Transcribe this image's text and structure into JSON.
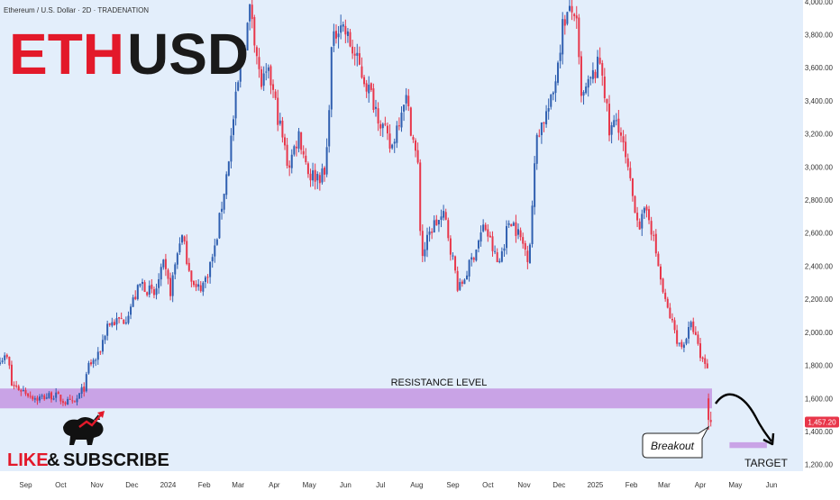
{
  "header": {
    "symbol_line": "Ethereum / U.S. Dollar · 2D · TRADENATION",
    "title_part1": "ETH",
    "title_part2": "USD"
  },
  "colors": {
    "background": "#e3eefb",
    "axis_background": "#ffffff",
    "up": "#2f5fb0",
    "down": "#e8364a",
    "zone": "#c9a3e6",
    "title_red": "#e3192a",
    "title_dark": "#1a1a1a",
    "price_label_bg": "#e8364a"
  },
  "annotations": {
    "resistance_label": "RESISTANCE LEVEL",
    "breakout_label": "Breakout",
    "target_label": "TARGET",
    "like": "LIKE",
    "amp": "&",
    "subscribe": "SUBSCRIBE"
  },
  "logo_icon": "bull-logo-icon",
  "chart_data": {
    "type": "candlestick",
    "title": "ETHUSD",
    "y_axis_ticks": [
      1200,
      1400,
      1600,
      1800,
      2000,
      2200,
      2400,
      2600,
      2800,
      3000,
      3200,
      3400,
      3600,
      3800,
      4000
    ],
    "y_axis_labels": [
      "1,200.00",
      "1,400.00",
      "1,600.00",
      "1,800.00",
      "2,000.00",
      "2,200.00",
      "2,400.00",
      "2,600.00",
      "2,800.00",
      "3,000.00",
      "3,200.00",
      "3,400.00",
      "3,600.00",
      "3,800.00",
      "4,000.00"
    ],
    "ylim": [
      1160,
      4010
    ],
    "x_labels": [
      {
        "label": "Sep",
        "date": "2023-09-01"
      },
      {
        "label": "Oct",
        "date": "2023-10-01"
      },
      {
        "label": "Nov",
        "date": "2023-11-01"
      },
      {
        "label": "Dec",
        "date": "2023-12-01"
      },
      {
        "label": "2024",
        "date": "2024-01-01"
      },
      {
        "label": "Feb",
        "date": "2024-02-01"
      },
      {
        "label": "Mar",
        "date": "2024-03-01"
      },
      {
        "label": "Apr",
        "date": "2024-04-01"
      },
      {
        "label": "May",
        "date": "2024-05-01"
      },
      {
        "label": "Jun",
        "date": "2024-06-01"
      },
      {
        "label": "Jul",
        "date": "2024-07-01"
      },
      {
        "label": "Aug",
        "date": "2024-08-01"
      },
      {
        "label": "Sep",
        "date": "2024-09-01"
      },
      {
        "label": "Oct",
        "date": "2024-10-01"
      },
      {
        "label": "Nov",
        "date": "2024-11-01"
      },
      {
        "label": "Dec",
        "date": "2024-12-01"
      },
      {
        "label": "2025",
        "date": "2025-01-01"
      },
      {
        "label": "Feb",
        "date": "2025-02-01"
      },
      {
        "label": "Mar",
        "date": "2025-03-01"
      },
      {
        "label": "Apr",
        "date": "2025-04-01"
      },
      {
        "label": "May",
        "date": "2025-05-01"
      },
      {
        "label": "Jun",
        "date": "2025-06-01"
      }
    ],
    "x_range": [
      "2023-08-10",
      "2025-06-28"
    ],
    "last_price": 1457.2,
    "last_price_label": "1,457.20",
    "resistance_zone": {
      "from": 1540,
      "to": 1660,
      "start": "2023-08-10",
      "end": "2025-04-11"
    },
    "target_zone": {
      "from": 1300,
      "to": 1335,
      "start": "2025-04-26",
      "end": "2025-05-28"
    },
    "keypoints": [
      [
        "2023-08-10",
        1850
      ],
      [
        "2023-08-17",
        1840
      ],
      [
        "2023-08-20",
        1680
      ],
      [
        "2023-09-01",
        1640
      ],
      [
        "2023-09-10",
        1600
      ],
      [
        "2023-09-25",
        1620
      ],
      [
        "2023-10-05",
        1580
      ],
      [
        "2023-10-12",
        1560
      ],
      [
        "2023-10-22",
        1680
      ],
      [
        "2023-10-25",
        1800
      ],
      [
        "2023-11-02",
        1850
      ],
      [
        "2023-11-10",
        2050
      ],
      [
        "2023-11-25",
        2080
      ],
      [
        "2023-12-09",
        2300
      ],
      [
        "2023-12-20",
        2220
      ],
      [
        "2023-12-28",
        2400
      ],
      [
        "2024-01-03",
        2250
      ],
      [
        "2024-01-12",
        2600
      ],
      [
        "2024-01-24",
        2250
      ],
      [
        "2024-02-01",
        2300
      ],
      [
        "2024-02-10",
        2500
      ],
      [
        "2024-02-20",
        2950
      ],
      [
        "2024-02-28",
        3400
      ],
      [
        "2024-03-03",
        3600
      ],
      [
        "2024-03-12",
        3980
      ],
      [
        "2024-03-20",
        3500
      ],
      [
        "2024-03-28",
        3550
      ],
      [
        "2024-04-13",
        3000
      ],
      [
        "2024-04-22",
        3200
      ],
      [
        "2024-05-01",
        2950
      ],
      [
        "2024-05-15",
        2950
      ],
      [
        "2024-05-20",
        3700
      ],
      [
        "2024-05-27",
        3900
      ],
      [
        "2024-06-10",
        3650
      ],
      [
        "2024-06-25",
        3400
      ],
      [
        "2024-07-10",
        3100
      ],
      [
        "2024-07-22",
        3450
      ],
      [
        "2024-08-02",
        3000
      ],
      [
        "2024-08-05",
        2450
      ],
      [
        "2024-08-15",
        2650
      ],
      [
        "2024-08-25",
        2700
      ],
      [
        "2024-09-06",
        2250
      ],
      [
        "2024-09-15",
        2400
      ],
      [
        "2024-09-28",
        2650
      ],
      [
        "2024-10-10",
        2400
      ],
      [
        "2024-10-20",
        2700
      ],
      [
        "2024-10-30",
        2550
      ],
      [
        "2024-11-05",
        2450
      ],
      [
        "2024-11-12",
        3200
      ],
      [
        "2024-11-25",
        3400
      ],
      [
        "2024-12-05",
        3900
      ],
      [
        "2024-12-15",
        3950
      ],
      [
        "2024-12-20",
        3400
      ],
      [
        "2025-01-06",
        3650
      ],
      [
        "2025-01-13",
        3200
      ],
      [
        "2025-01-20",
        3300
      ],
      [
        "2025-02-01",
        2850
      ],
      [
        "2025-02-08",
        2650
      ],
      [
        "2025-02-15",
        2750
      ],
      [
        "2025-02-24",
        2400
      ],
      [
        "2025-03-01",
        2200
      ],
      [
        "2025-03-08",
        2050
      ],
      [
        "2025-03-15",
        1900
      ],
      [
        "2025-03-25",
        2050
      ],
      [
        "2025-04-01",
        1850
      ],
      [
        "2025-04-07",
        1800
      ]
    ],
    "post_break_candles": [
      {
        "date": "2025-04-08",
        "open": 1600,
        "high": 1630,
        "low": 1410,
        "close": 1470
      },
      {
        "date": "2025-04-10",
        "open": 1470,
        "high": 1520,
        "low": 1430,
        "close": 1457.2
      }
    ]
  }
}
